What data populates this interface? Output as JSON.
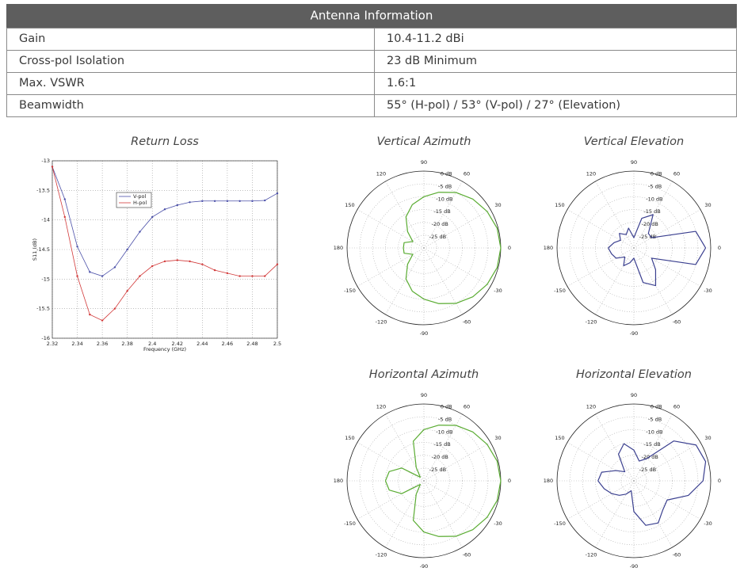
{
  "table": {
    "title": "Antenna Information",
    "rows": [
      [
        "Gain",
        "10.4-11.2 dBi"
      ],
      [
        "Cross-pol Isolation",
        "23 dB Minimum"
      ],
      [
        "Max. VSWR",
        "1.6:1"
      ],
      [
        "Beamwidth",
        "55° (H-pol) / 53° (V-pol) / 27° (Elevation)"
      ]
    ]
  },
  "chart_data": [
    {
      "type": "line",
      "title": "Return Loss",
      "x_label": "Frequency (GHz)",
      "y_label": "S11 (dB)",
      "x": [
        2.32,
        2.33,
        2.34,
        2.35,
        2.36,
        2.37,
        2.38,
        2.39,
        2.4,
        2.41,
        2.42,
        2.43,
        2.44,
        2.45,
        2.46,
        2.47,
        2.48,
        2.49,
        2.5
      ],
      "series": [
        {
          "name": "V-pol",
          "color": "#4a4fa8",
          "values": [
            -13.1,
            -13.65,
            -14.45,
            -14.88,
            -14.95,
            -14.8,
            -14.5,
            -14.2,
            -13.95,
            -13.82,
            -13.75,
            -13.7,
            -13.68,
            -13.68,
            -13.68,
            -13.68,
            -13.68,
            -13.67,
            -13.55
          ]
        },
        {
          "name": "H-pol",
          "color": "#d23a3a",
          "values": [
            -13.1,
            -13.95,
            -14.95,
            -15.6,
            -15.7,
            -15.5,
            -15.2,
            -14.95,
            -14.78,
            -14.7,
            -14.68,
            -14.7,
            -14.75,
            -14.85,
            -14.9,
            -14.95,
            -14.95,
            -14.95,
            -14.75
          ]
        }
      ],
      "xlim": [
        2.32,
        2.5
      ],
      "xticks": [
        2.32,
        2.34,
        2.36,
        2.38,
        2.4,
        2.42,
        2.44,
        2.46,
        2.48,
        2.5
      ],
      "ylim": [
        -16,
        -13
      ],
      "yticks": [
        -13,
        -13.5,
        -14,
        -14.5,
        -15,
        -15.5,
        -16
      ],
      "grid": true
    },
    {
      "type": "polar",
      "title": "Vertical Azimuth",
      "theta": [
        -180,
        -165,
        -150,
        -135,
        -120,
        -105,
        -90,
        -75,
        -60,
        -45,
        -30,
        -15,
        0,
        15,
        30,
        45,
        60,
        75,
        90,
        105,
        120,
        135,
        150,
        165,
        180
      ],
      "series": [
        {
          "color": "#5aac32",
          "values": [
            -22,
            -22,
            -25,
            -21,
            -16,
            -12.5,
            -10,
            -7.5,
            -5,
            -3,
            -1.5,
            -0.4,
            0,
            -0.4,
            -1.5,
            -3,
            -5,
            -7.5,
            -10,
            -12.5,
            -16,
            -21,
            -25,
            -22,
            -22
          ]
        }
      ],
      "rlim": [
        -30,
        0
      ],
      "rticks": [
        {
          "value": 0,
          "label": "0 dB"
        },
        {
          "value": -5,
          "label": "-5 dB"
        },
        {
          "value": -10,
          "label": "-10 dB"
        },
        {
          "value": -15,
          "label": "-15 dB"
        },
        {
          "value": -20,
          "label": "-20 dB"
        },
        {
          "value": -25,
          "label": "-25 dB"
        }
      ],
      "thetaticks": [
        0,
        30,
        60,
        90,
        120,
        150,
        180,
        -150,
        -120,
        -90,
        -60,
        -30
      ]
    },
    {
      "type": "polar",
      "title": "Vertical Elevation",
      "theta": [
        -180,
        -165,
        -150,
        -135,
        -120,
        -105,
        -90,
        -75,
        -60,
        -45,
        -30,
        -15,
        0,
        15,
        30,
        45,
        60,
        75,
        90,
        105,
        120,
        135,
        150,
        165,
        180
      ],
      "series": [
        {
          "color": "#3a3f8f",
          "values": [
            -20,
            -21,
            -22,
            -25,
            -22,
            -24,
            -26,
            -16,
            -13,
            -18,
            -22,
            -5,
            -2,
            -5,
            -22,
            -22,
            -15,
            -18,
            -26,
            -22,
            -24,
            -22,
            -24,
            -22,
            -20
          ]
        }
      ],
      "rlim": [
        -30,
        0
      ],
      "rticks": [
        {
          "value": 0,
          "label": "0 dB"
        },
        {
          "value": -5,
          "label": "-5 dB"
        },
        {
          "value": -10,
          "label": "-10 dB"
        },
        {
          "value": -15,
          "label": "-15 dB"
        },
        {
          "value": -20,
          "label": "-20 dB"
        },
        {
          "value": -25,
          "label": "-25 dB"
        }
      ],
      "thetaticks": [
        0,
        30,
        60,
        90,
        120,
        150,
        180,
        -150,
        -120,
        -90,
        -60,
        -30
      ]
    },
    {
      "type": "polar",
      "title": "Horizontal Azimuth",
      "theta": [
        -180,
        -165,
        -150,
        -135,
        -120,
        -105,
        -90,
        -75,
        -60,
        -45,
        -30,
        -15,
        0,
        15,
        30,
        45,
        60,
        75,
        90,
        105,
        120,
        135,
        150,
        165,
        180
      ],
      "series": [
        {
          "color": "#5aac32",
          "values": [
            -15,
            -16,
            -20,
            -28,
            -24,
            -14,
            -10,
            -7.5,
            -5,
            -3,
            -1.5,
            -0.4,
            0,
            -0.4,
            -1.5,
            -3,
            -5,
            -7.5,
            -10,
            -14,
            -24,
            -28,
            -20,
            -16,
            -15
          ]
        }
      ],
      "rlim": [
        -30,
        0
      ],
      "rticks": [
        {
          "value": 0,
          "label": "0 dB"
        },
        {
          "value": -5,
          "label": "-5 dB"
        },
        {
          "value": -10,
          "label": "-10 dB"
        },
        {
          "value": -15,
          "label": "-15 dB"
        },
        {
          "value": -20,
          "label": "-20 dB"
        },
        {
          "value": -25,
          "label": "-25 dB"
        }
      ],
      "thetaticks": [
        0,
        30,
        60,
        90,
        120,
        150,
        180,
        -150,
        -120,
        -90,
        -60,
        -30
      ]
    },
    {
      "type": "polar",
      "title": "Horizontal Elevation",
      "theta": [
        -180,
        -165,
        -150,
        -135,
        -120,
        -105,
        -90,
        -75,
        -60,
        -45,
        -30,
        -15,
        0,
        15,
        30,
        45,
        60,
        75,
        90,
        105,
        120,
        135,
        150,
        165,
        180
      ],
      "series": [
        {
          "color": "#3a3f8f",
          "values": [
            -16,
            -18,
            -20,
            -22,
            -24,
            -26,
            -18,
            -12,
            -11,
            -14,
            -15,
            -8,
            -3,
            -1,
            -2,
            -8,
            -20,
            -22,
            -18,
            -15,
            -18,
            -25,
            -22,
            -17,
            -16
          ]
        }
      ],
      "rlim": [
        -30,
        0
      ],
      "rticks": [
        {
          "value": 0,
          "label": "0 dB"
        },
        {
          "value": -5,
          "label": "-5 dB"
        },
        {
          "value": -10,
          "label": "-10 dB"
        },
        {
          "value": -15,
          "label": "-15 dB"
        },
        {
          "value": -20,
          "label": "-20 dB"
        },
        {
          "value": -25,
          "label": "-25 dB"
        }
      ],
      "thetaticks": [
        0,
        30,
        60,
        90,
        120,
        150,
        180,
        -150,
        -120,
        -90,
        -60,
        -30
      ]
    }
  ]
}
